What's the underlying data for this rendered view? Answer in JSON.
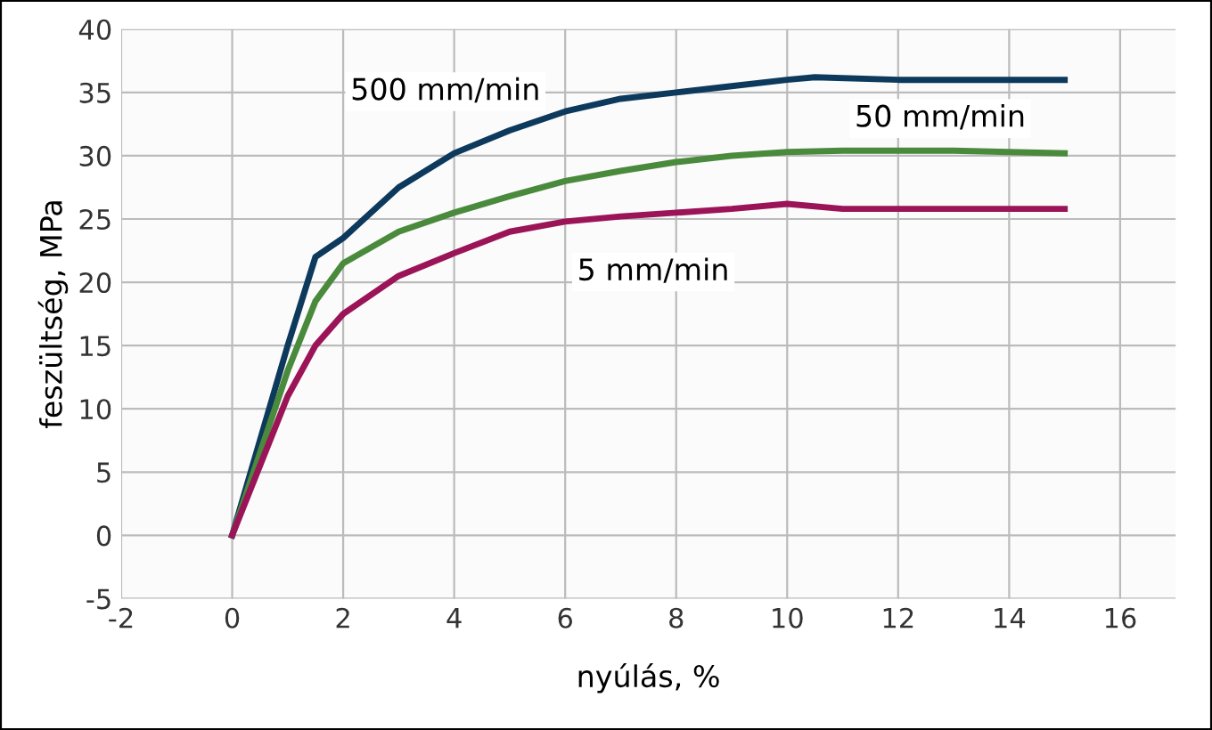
{
  "chart_data": {
    "type": "line",
    "xlabel": "nyúlás, %",
    "ylabel": "feszültség, MPa",
    "xlim": [
      -2,
      17
    ],
    "ylim": [
      -5,
      40
    ],
    "xticks": [
      -2,
      0,
      2,
      4,
      6,
      8,
      10,
      12,
      14,
      16
    ],
    "yticks": [
      -5,
      0,
      5,
      10,
      15,
      20,
      25,
      30,
      35,
      40
    ],
    "grid": true,
    "legend": false,
    "marker": "none",
    "line_style": "solid",
    "series": [
      {
        "name": "500 mm/min",
        "color": "#0d3a5c",
        "x": [
          0,
          1,
          1.5,
          2,
          3,
          4,
          5,
          6,
          7,
          8,
          9,
          10,
          10.5,
          12,
          15
        ],
        "values": [
          0,
          15,
          22,
          23.5,
          27.5,
          30.2,
          32,
          33.5,
          34.5,
          35,
          35.5,
          36,
          36.2,
          36,
          36
        ]
      },
      {
        "name": "50 mm/min",
        "color": "#4a8a3c",
        "x": [
          0,
          1,
          1.5,
          2,
          3,
          4,
          5,
          6,
          7,
          8,
          9,
          10,
          11,
          13,
          14,
          15
        ],
        "values": [
          0,
          13,
          18.5,
          21.5,
          24,
          25.5,
          26.8,
          28,
          28.8,
          29.5,
          30,
          30.3,
          30.4,
          30.4,
          30.3,
          30.2
        ]
      },
      {
        "name": "5 mm/min",
        "color": "#9b1458",
        "x": [
          0,
          1,
          1.5,
          2,
          3,
          4,
          5,
          6,
          7,
          8,
          9,
          10,
          11,
          15
        ],
        "values": [
          0,
          11,
          15,
          17.5,
          20.5,
          22.3,
          24,
          24.8,
          25.2,
          25.5,
          25.8,
          26.2,
          25.8,
          25.8
        ]
      }
    ]
  }
}
